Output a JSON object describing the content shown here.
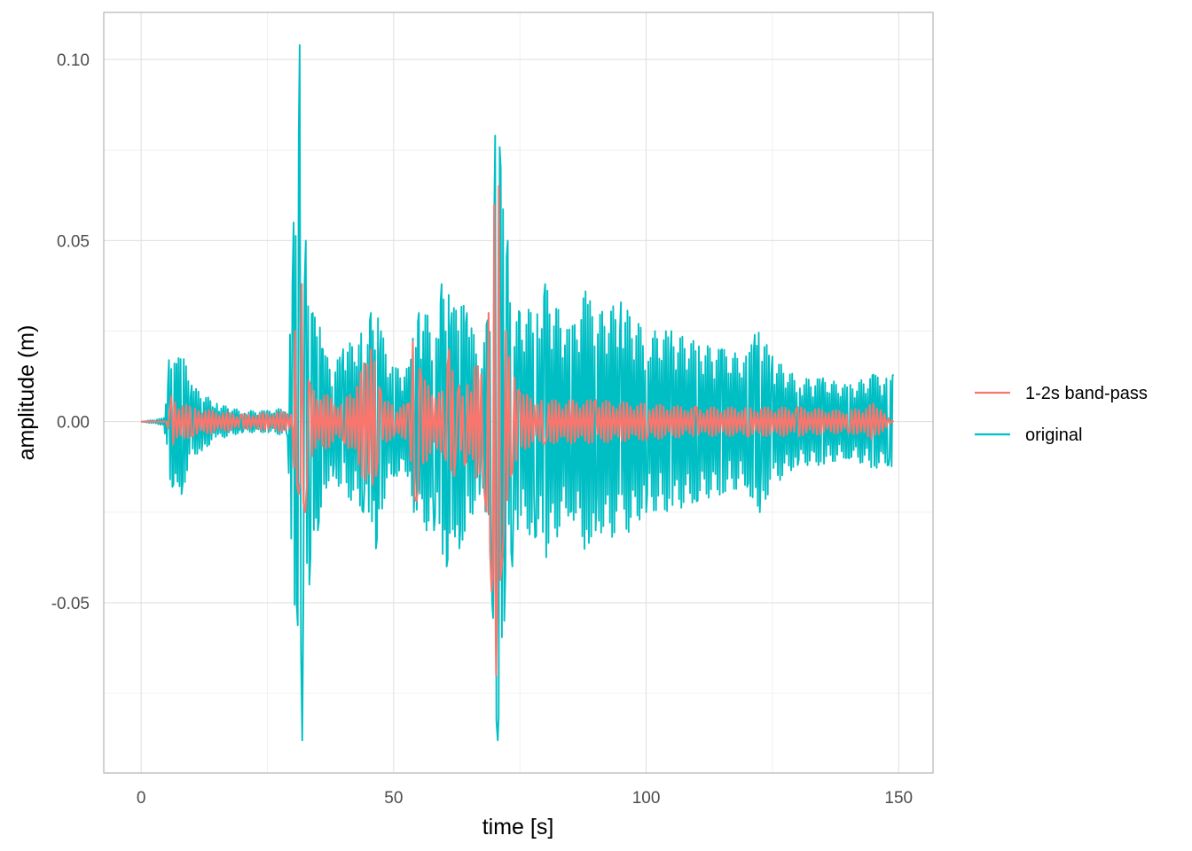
{
  "chart_data": {
    "type": "line",
    "title": "",
    "xlabel": "time [s]",
    "ylabel": "amplitude (m)",
    "xlim": [
      -7.4,
      156.8
    ],
    "ylim": [
      -0.097,
      0.113
    ],
    "x_ticks": [
      0,
      50,
      100,
      150
    ],
    "x_tick_labels": [
      "0",
      "50",
      "100",
      "150"
    ],
    "y_ticks": [
      -0.05,
      0.0,
      0.05,
      0.1
    ],
    "y_tick_labels": [
      "-0.05",
      "0.00",
      "0.05",
      "0.10"
    ],
    "grid": true,
    "legend_position": "right",
    "series": [
      {
        "name": "1-2s band-pass",
        "color": "#F8766D",
        "x": [
          0,
          5,
          6,
          10,
          20,
          30,
          30.5,
          31.2,
          31.8,
          32.5,
          33.5,
          40,
          45.5,
          46.5,
          47.5,
          50,
          53,
          53.8,
          54.5,
          55.5,
          60,
          61,
          62,
          63,
          64,
          66,
          68,
          68.8,
          69.4,
          69.9,
          70.3,
          70.8,
          71.4,
          72.2,
          73.2,
          75,
          80,
          90,
          100,
          110,
          120,
          130,
          140,
          145,
          149
        ],
        "y": [
          0,
          0,
          0.007,
          -0.004,
          0.002,
          -0.003,
          0.025,
          -0.02,
          0.038,
          -0.025,
          0.01,
          -0.005,
          0.02,
          -0.015,
          0.008,
          -0.004,
          0.005,
          0.022,
          -0.022,
          0.012,
          -0.008,
          0.02,
          -0.015,
          0.01,
          -0.012,
          0.015,
          -0.02,
          0.03,
          -0.047,
          0.06,
          -0.07,
          0.065,
          -0.04,
          0.025,
          -0.015,
          0.008,
          -0.006,
          0.006,
          -0.005,
          0.004,
          -0.004,
          0.004,
          -0.003,
          0.005,
          0
        ]
      },
      {
        "name": "original",
        "color": "#00BFC4",
        "x": [
          0,
          4.5,
          5.5,
          6.2,
          7,
          8,
          10,
          12,
          15,
          20,
          25,
          29,
          30.2,
          30.8,
          31.4,
          31.9,
          32.6,
          33.3,
          34,
          35,
          36,
          38,
          40,
          44,
          45.5,
          46.5,
          47.5,
          50,
          53,
          54,
          55,
          58,
          59.5,
          60.5,
          61.5,
          63,
          64.5,
          67,
          68.6,
          69.5,
          70.1,
          70.6,
          71.2,
          71.9,
          72.6,
          73.5,
          75,
          78,
          80,
          85,
          88,
          90,
          95,
          100,
          105,
          110,
          115,
          120,
          121.5,
          122.5,
          125,
          130,
          135,
          140,
          145,
          148,
          149
        ],
        "y": [
          0,
          0.001,
          0.017,
          -0.018,
          0.016,
          -0.02,
          0.01,
          -0.008,
          0.005,
          -0.003,
          0.003,
          -0.004,
          0.055,
          -0.05,
          0.104,
          -0.088,
          0.05,
          -0.045,
          0.03,
          -0.03,
          0.02,
          -0.015,
          0.02,
          -0.025,
          0.03,
          -0.035,
          0.025,
          -0.015,
          0.015,
          -0.025,
          0.03,
          -0.03,
          0.038,
          -0.04,
          0.03,
          -0.035,
          0.03,
          -0.02,
          0.028,
          -0.05,
          0.079,
          -0.088,
          0.07,
          -0.055,
          0.05,
          -0.04,
          0.03,
          -0.032,
          0.038,
          -0.025,
          0.036,
          -0.03,
          0.033,
          -0.025,
          0.025,
          -0.022,
          0.02,
          -0.018,
          0.024,
          -0.025,
          0.018,
          -0.012,
          0.012,
          -0.01,
          0.013,
          -0.012,
          0.013
        ]
      }
    ]
  }
}
